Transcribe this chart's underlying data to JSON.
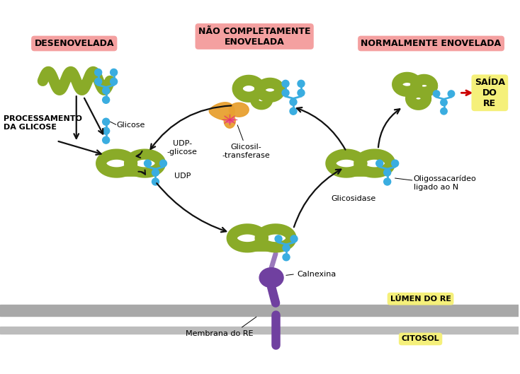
{
  "bg_color": "#ffffff",
  "protein_color": "#8aab28",
  "oligosac_color": "#3aade0",
  "chaperone_color": "#7040a0",
  "glucosyl_color": "#e8a030",
  "glucosyl_glow": "#e86090",
  "membrane_color": "#aaaaaa",
  "membrane_color2": "#bbbbbb",
  "label_box_pink": "#f4a0a0",
  "label_box_yellow": "#f5f07a",
  "title_desenovelada": "DESENOVELADA",
  "title_nao_completamente": "NÃO COMPLETAMENTE\nENOVELADA",
  "title_normalmente": "NORMALMENTE ENOVELADA",
  "label_processamento": "PROCESSAMENTO\nDA GLICOSE",
  "label_glicose": "Glicose",
  "label_udp_glicose": "UDP-\n-glicose",
  "label_udp": "UDP",
  "label_glicosil": "Glicosil-\n-transferase",
  "label_calnexina": "Calnexina",
  "label_membrana": "Membrana do RE",
  "label_lumen": "LÚMEN DO RE",
  "label_citosol": "CITOSOL",
  "label_glicosidase": "Glicosidase",
  "label_oligossacarideo": "Oligossacarídeo\nligado ao N",
  "label_saida": "SAÍDA\nDO\nRE",
  "arrow_color": "#111111",
  "saida_arrow_color": "#cc0000",
  "figw": 7.34,
  "figh": 5.29,
  "dpi": 100
}
